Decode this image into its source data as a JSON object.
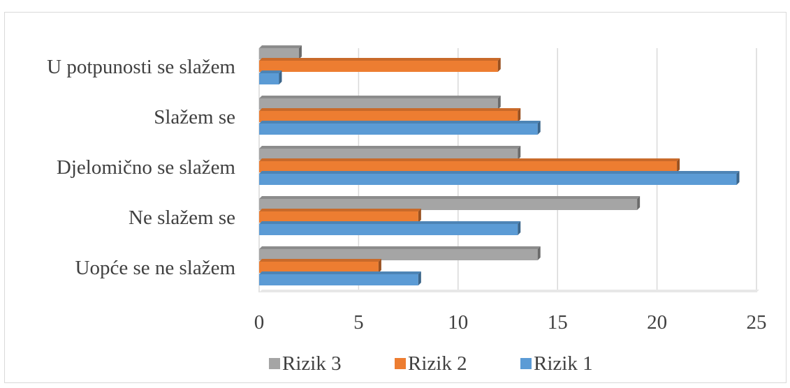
{
  "chart_data": {
    "type": "bar",
    "orientation": "horizontal",
    "categories": [
      "U potpunosti se slažem",
      "Slažem se",
      "Djelomično se slažem",
      "Ne slažem se",
      "Uopće se ne slažem"
    ],
    "series": [
      {
        "name": "Rizik 3",
        "color": "#a5a5a5",
        "values": [
          2,
          12,
          13,
          19,
          14
        ]
      },
      {
        "name": "Rizik 2",
        "color": "#ed7d31",
        "values": [
          12,
          13,
          21,
          8,
          6
        ]
      },
      {
        "name": "Rizik 1",
        "color": "#5b9bd5",
        "values": [
          1,
          14,
          24,
          13,
          8
        ]
      }
    ],
    "xlim": [
      0,
      25
    ],
    "xticks": [
      0,
      5,
      10,
      15,
      20,
      25
    ],
    "grid": true,
    "legend_position": "bottom"
  }
}
